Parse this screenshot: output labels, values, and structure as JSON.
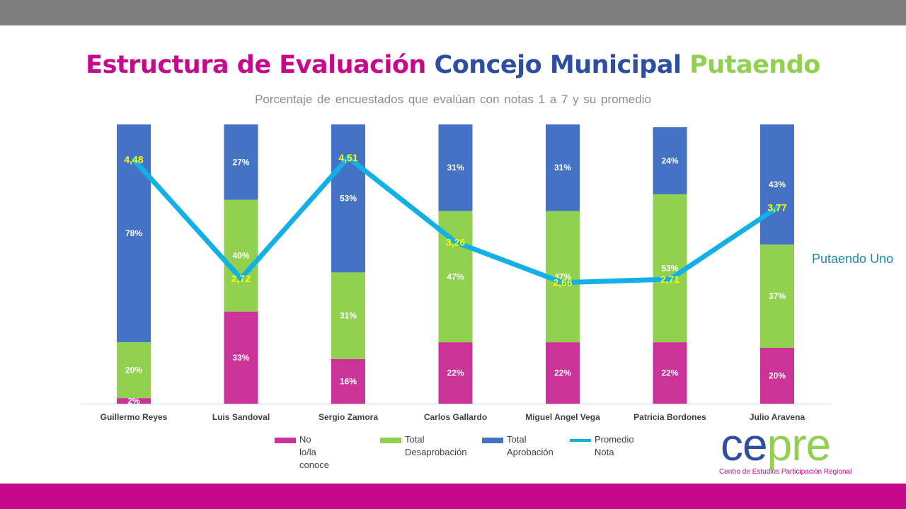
{
  "header": {
    "title_part1": "Estructura de Evaluación",
    "title_part2": "Concejo Municipal",
    "title_part3": "Putaendo",
    "subtitle": "Porcentaje de encuestados que evalúan con notas 1 a 7 y su promedio"
  },
  "side_note": "Putaendo Uno",
  "legend": {
    "no_conoce": "No lo/la conoce",
    "desaprobacion_line1": "Total",
    "desaprobacion_line2": "Desaprobación",
    "aprobacion_line1": "Total",
    "aprobacion_line2": "Aprobación",
    "promedio_line1": "Promedio",
    "promedio_line2": "Nota"
  },
  "logo": {
    "ce": "ce",
    "pre": "pre",
    "tagline": "Centro de Estudios  Participación Regional"
  },
  "colors": {
    "no_conoce": "#cc3399",
    "desaprobacion": "#92d050",
    "aprobacion": "#4472c4",
    "promedio": "#12b0e6",
    "promedio_label": "#ffff00",
    "title_magenta": "#c8088c",
    "title_blue": "#2e4ea1",
    "title_green": "#92d050"
  },
  "chart_data": {
    "type": "bar",
    "stacked": true,
    "categories": [
      "Guillermo Reyes",
      "Luis Sandoval",
      "Sergio Zamora",
      "Carlos Gallardo",
      "Miguel Angel Vega",
      "Patricia Bordones",
      "Julio Aravena"
    ],
    "series": [
      {
        "name": "No lo/la conoce",
        "values": [
          2,
          33,
          16,
          22,
          22,
          22,
          20
        ],
        "labels": [
          "2%",
          "33%",
          "16%",
          "22%",
          "22%",
          "22%",
          "20%"
        ]
      },
      {
        "name": "Total Desaprobación",
        "values": [
          20,
          40,
          31,
          47,
          47,
          53,
          37
        ],
        "labels": [
          "20%",
          "40%",
          "31%",
          "47%",
          "47%",
          "53%",
          "37%"
        ]
      },
      {
        "name": "Total Aprobación",
        "values": [
          78,
          27,
          53,
          31,
          31,
          24,
          43
        ],
        "labels": [
          "78%",
          "27%",
          "53%",
          "31%",
          "31%",
          "24%",
          "43%"
        ]
      }
    ],
    "line_series": {
      "name": "Promedio Nota",
      "values": [
        4.48,
        2.72,
        4.51,
        3.26,
        2.66,
        2.71,
        3.77
      ],
      "labels": [
        "4,48",
        "2,72",
        "4,51",
        "3,26",
        "2,66",
        "2,71",
        "3,77"
      ]
    },
    "ylim": [
      0,
      100
    ],
    "grid": false,
    "legend_position": "bottom"
  }
}
